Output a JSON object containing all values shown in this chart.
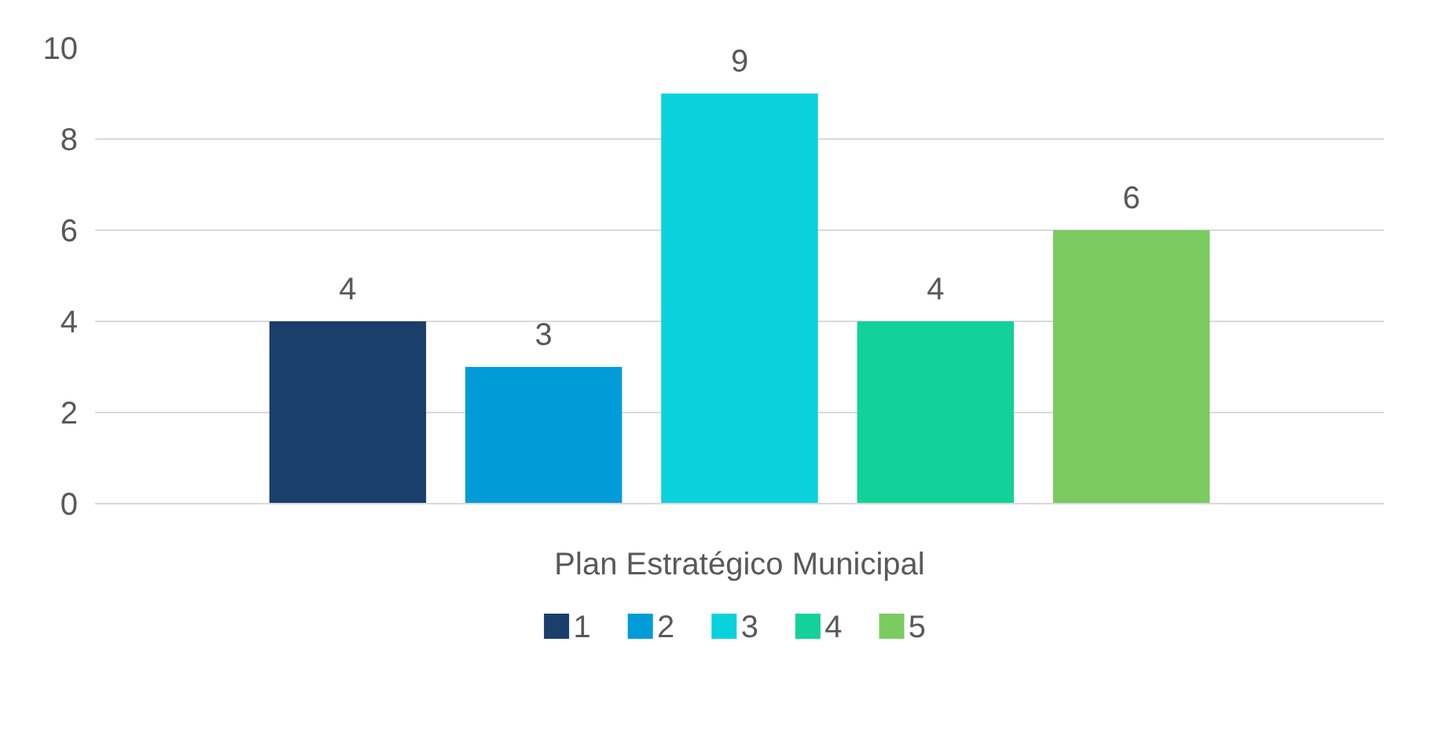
{
  "chart_data": {
    "type": "bar",
    "categories": [
      "Plan Estratégico Municipal"
    ],
    "series": [
      {
        "name": "1",
        "color": "#1a3f6b",
        "values": [
          4
        ]
      },
      {
        "name": "2",
        "color": "#009cd8",
        "values": [
          3
        ]
      },
      {
        "name": "3",
        "color": "#0ad2dc",
        "values": [
          9
        ]
      },
      {
        "name": "4",
        "color": "#12d19a",
        "values": [
          4
        ]
      },
      {
        "name": "5",
        "color": "#7bcb60",
        "values": [
          6
        ]
      }
    ],
    "ylim": [
      0,
      10
    ],
    "yticks": [
      0,
      2,
      4,
      6,
      8,
      10
    ],
    "grid": "y",
    "legend": "bottom",
    "data_labels": true
  }
}
